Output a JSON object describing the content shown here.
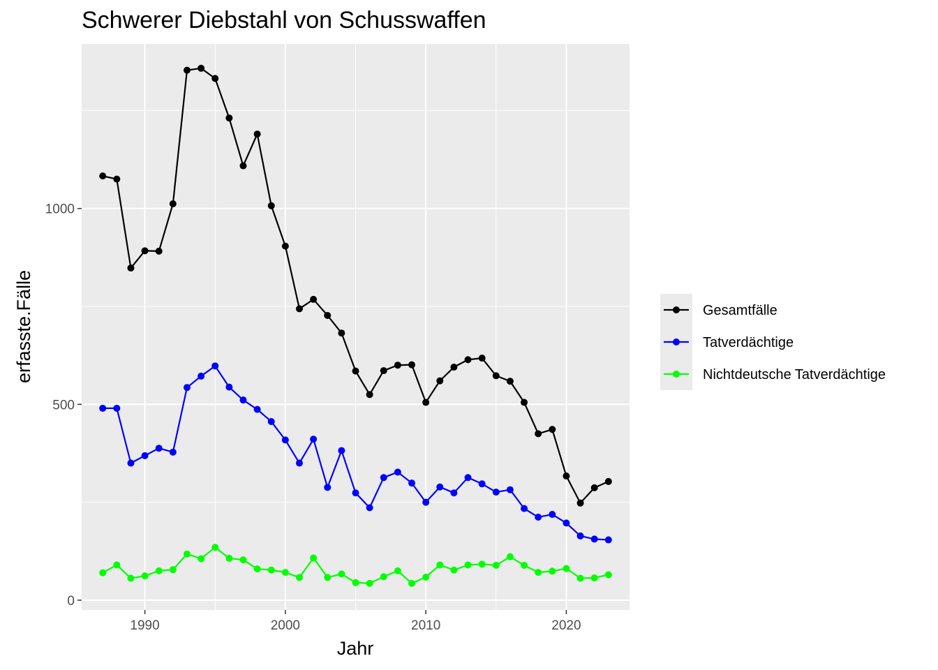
{
  "chart_data": {
    "type": "line",
    "title": "Schwerer Diebstahl von Schusswaffen",
    "xlabel": "Jahr",
    "ylabel": "erfasste.Fälle",
    "xlim": [
      1985.5,
      2024.5
    ],
    "ylim": [
      -25,
      1420
    ],
    "x_ticks": [
      1990,
      2000,
      2010,
      2020
    ],
    "y_ticks": [
      0,
      500,
      1000
    ],
    "x_tick_labels": [
      "1990",
      "2000",
      "2010",
      "2020"
    ],
    "y_tick_labels": [
      "0",
      "500",
      "1000"
    ],
    "grid": true,
    "legend_position": "right",
    "x": [
      1987,
      1988,
      1989,
      1990,
      1991,
      1992,
      1993,
      1994,
      1995,
      1996,
      1997,
      1998,
      1999,
      2000,
      2001,
      2002,
      2003,
      2004,
      2005,
      2006,
      2007,
      2008,
      2009,
      2010,
      2011,
      2012,
      2013,
      2014,
      2015,
      2016,
      2017,
      2018,
      2019,
      2020,
      2021,
      2022,
      2023
    ],
    "series": [
      {
        "name": "Gesamtfälle",
        "color": "#000000",
        "values": [
          1083,
          1075,
          848,
          892,
          891,
          1012,
          1353,
          1358,
          1332,
          1231,
          1109,
          1190,
          1007,
          904,
          744,
          768,
          727,
          682,
          585,
          525,
          586,
          600,
          601,
          505,
          560,
          595,
          614,
          618,
          573,
          559,
          505,
          425,
          436,
          317,
          248,
          287,
          303
        ]
      },
      {
        "name": "Tatverdächtige",
        "color": "#0000ff",
        "values": [
          490,
          490,
          350,
          369,
          388,
          378,
          543,
          572,
          598,
          544,
          511,
          487,
          456,
          409,
          350,
          411,
          288,
          382,
          274,
          236,
          313,
          327,
          299,
          250,
          289,
          274,
          313,
          297,
          276,
          282,
          234,
          212,
          219,
          197,
          164,
          156,
          154
        ]
      },
      {
        "name": "Nichtdeutsche Tatverdächtige",
        "color": "#00ff00",
        "values": [
          70,
          90,
          56,
          62,
          75,
          78,
          118,
          106,
          135,
          107,
          103,
          80,
          77,
          71,
          58,
          108,
          58,
          67,
          45,
          43,
          60,
          75,
          43,
          59,
          90,
          77,
          90,
          92,
          89,
          111,
          89,
          71,
          74,
          81,
          56,
          57,
          65
        ]
      }
    ]
  }
}
